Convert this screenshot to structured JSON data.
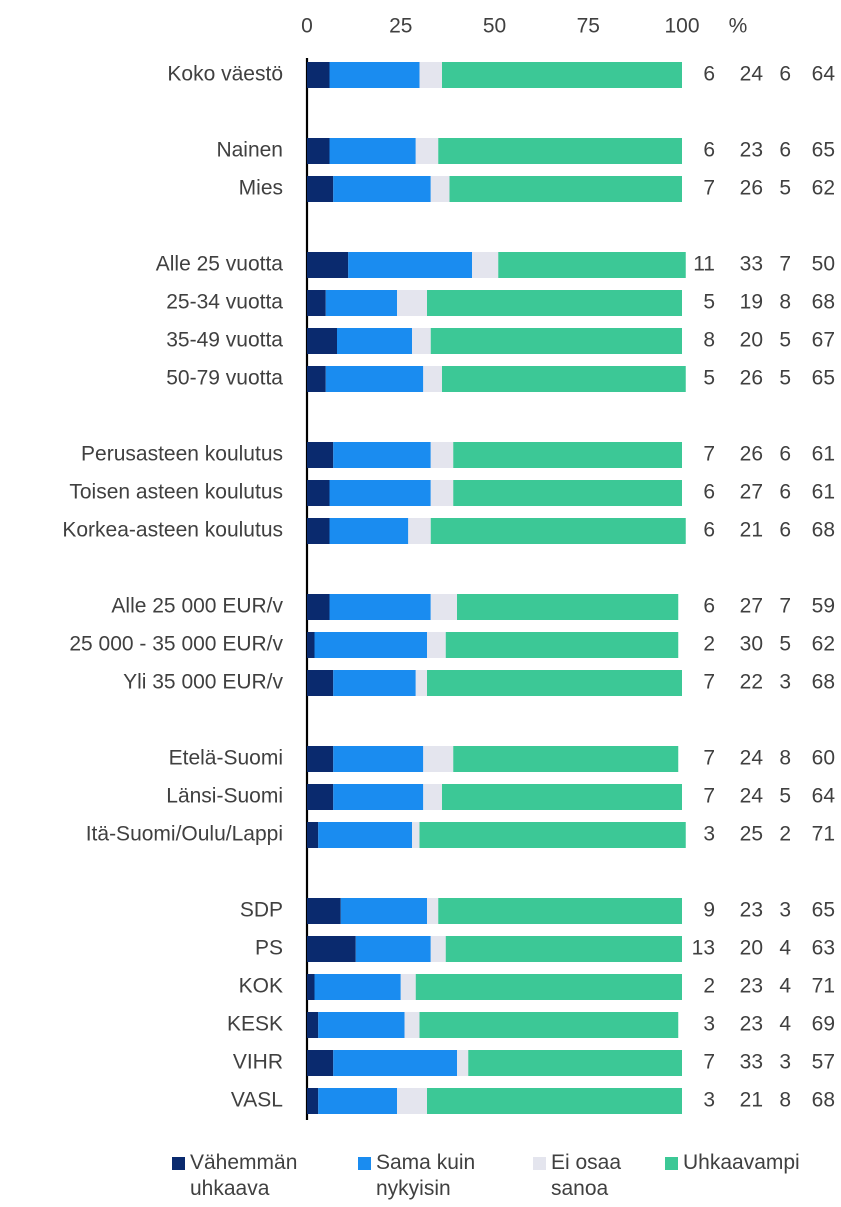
{
  "chart_data": {
    "type": "stacked_bar_horizontal",
    "xlabel": "%",
    "xlim": [
      0,
      100
    ],
    "xticks": [
      0,
      25,
      50,
      75,
      100
    ],
    "categories": [
      "Koko väestö",
      null,
      "Nainen",
      "Mies",
      null,
      "Alle 25 vuotta",
      "25-34 vuotta",
      "35-49 vuotta",
      "50-79 vuotta",
      null,
      "Perusasteen koulutus",
      "Toisen asteen koulutus",
      "Korkea-asteen koulutus",
      null,
      "Alle 25 000 EUR/v",
      "25 000 - 35 000 EUR/v",
      "Yli 35 000 EUR/v",
      null,
      "Etelä-Suomi",
      "Länsi-Suomi",
      "Itä-Suomi/Oulu/Lappi",
      null,
      "SDP",
      "PS",
      "KOK",
      "KESK",
      "VIHR",
      "VASL"
    ],
    "series": [
      {
        "name": "Vähemmän uhkaava",
        "color": "#0a2a6e",
        "values": [
          6,
          null,
          6,
          7,
          null,
          11,
          5,
          8,
          5,
          null,
          7,
          6,
          6,
          null,
          6,
          2,
          7,
          null,
          7,
          7,
          3,
          null,
          9,
          13,
          2,
          3,
          7,
          3
        ]
      },
      {
        "name": "Sama kuin nykyisin",
        "color": "#1a8cf0",
        "values": [
          24,
          null,
          23,
          26,
          null,
          33,
          19,
          20,
          26,
          null,
          26,
          27,
          21,
          null,
          27,
          30,
          22,
          null,
          24,
          24,
          25,
          null,
          23,
          20,
          23,
          23,
          33,
          21
        ]
      },
      {
        "name": "Ei osaa sanoa",
        "color": "#e4e5ee",
        "values": [
          6,
          null,
          6,
          5,
          null,
          7,
          8,
          5,
          5,
          null,
          6,
          6,
          6,
          null,
          7,
          5,
          3,
          null,
          8,
          5,
          2,
          null,
          3,
          4,
          4,
          4,
          3,
          8
        ]
      },
      {
        "name": "Uhkaavampi",
        "color": "#3cc896",
        "values": [
          64,
          null,
          65,
          62,
          null,
          50,
          68,
          67,
          65,
          null,
          61,
          61,
          68,
          null,
          59,
          62,
          68,
          null,
          60,
          64,
          71,
          null,
          65,
          63,
          71,
          69,
          57,
          68
        ]
      }
    ]
  }
}
